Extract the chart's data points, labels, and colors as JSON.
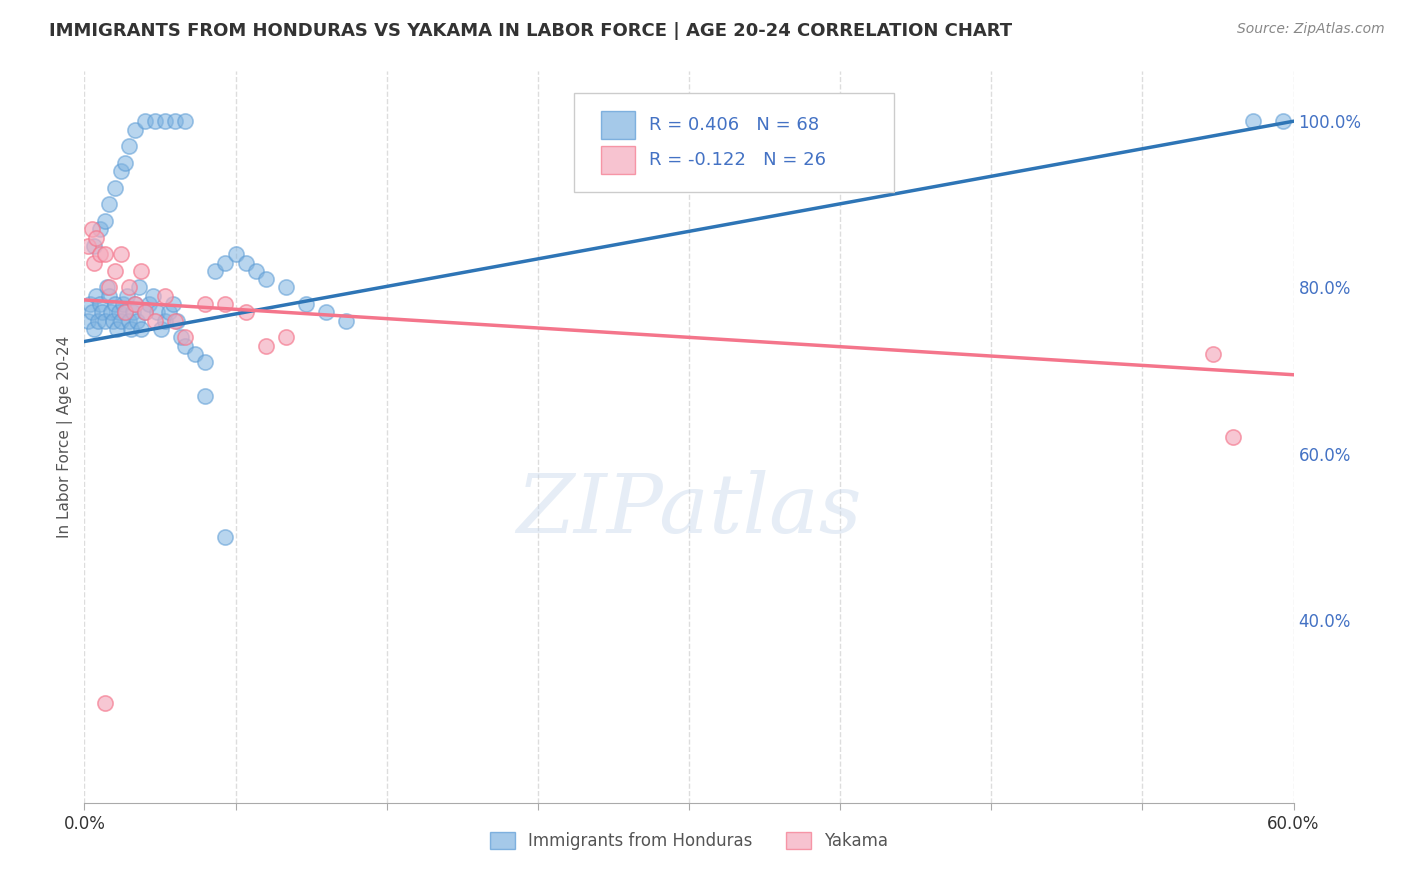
{
  "title": "IMMIGRANTS FROM HONDURAS VS YAKAMA IN LABOR FORCE | AGE 20-24 CORRELATION CHART",
  "source": "Source: ZipAtlas.com",
  "ylabel": "In Labor Force | Age 20-24",
  "watermark": "ZIPatlas",
  "xlim": [
    0.0,
    0.6
  ],
  "ylim": [
    0.18,
    1.06
  ],
  "xtick_positions": [
    0.0,
    0.075,
    0.15,
    0.225,
    0.3,
    0.375,
    0.45,
    0.525,
    0.6
  ],
  "xtick_labels_show": {
    "0.0": "0.0%",
    "0.60": "60.0%"
  },
  "ytick_grid_positions": [
    0.4,
    0.6,
    0.8,
    1.0
  ],
  "ytick_labels_right": [
    "40.0%",
    "60.0%",
    "80.0%",
    "100.0%"
  ],
  "blue_color": "#7FB3E0",
  "pink_color": "#F4AABC",
  "blue_edge_color": "#5B9BD5",
  "pink_edge_color": "#F4758B",
  "blue_line_color": "#2E75B6",
  "pink_line_color": "#F4758B",
  "R_blue": 0.406,
  "N_blue": 68,
  "R_pink": -0.122,
  "N_pink": 26,
  "legend_blue": "Immigrants from Honduras",
  "legend_pink": "Yakama",
  "blue_scatter_x": [
    0.002,
    0.003,
    0.004,
    0.005,
    0.006,
    0.007,
    0.008,
    0.009,
    0.01,
    0.011,
    0.012,
    0.013,
    0.014,
    0.015,
    0.016,
    0.017,
    0.018,
    0.019,
    0.02,
    0.021,
    0.022,
    0.023,
    0.024,
    0.025,
    0.026,
    0.027,
    0.028,
    0.03,
    0.032,
    0.034,
    0.036,
    0.038,
    0.04,
    0.042,
    0.044,
    0.046,
    0.048,
    0.05,
    0.055,
    0.06,
    0.065,
    0.07,
    0.075,
    0.08,
    0.085,
    0.09,
    0.1,
    0.11,
    0.12,
    0.13,
    0.005,
    0.008,
    0.01,
    0.012,
    0.015,
    0.018,
    0.02,
    0.022,
    0.025,
    0.03,
    0.035,
    0.04,
    0.045,
    0.05,
    0.06,
    0.07,
    0.58,
    0.595
  ],
  "blue_scatter_y": [
    0.76,
    0.78,
    0.77,
    0.75,
    0.79,
    0.76,
    0.78,
    0.77,
    0.76,
    0.8,
    0.79,
    0.77,
    0.76,
    0.78,
    0.75,
    0.77,
    0.76,
    0.78,
    0.77,
    0.79,
    0.76,
    0.75,
    0.77,
    0.78,
    0.76,
    0.8,
    0.75,
    0.77,
    0.78,
    0.79,
    0.77,
    0.75,
    0.76,
    0.77,
    0.78,
    0.76,
    0.74,
    0.73,
    0.72,
    0.71,
    0.82,
    0.83,
    0.84,
    0.83,
    0.82,
    0.81,
    0.8,
    0.78,
    0.77,
    0.76,
    0.85,
    0.87,
    0.88,
    0.9,
    0.92,
    0.94,
    0.95,
    0.97,
    0.99,
    1.0,
    1.0,
    1.0,
    1.0,
    1.0,
    0.67,
    0.5,
    1.0,
    1.0
  ],
  "pink_scatter_x": [
    0.002,
    0.004,
    0.005,
    0.006,
    0.008,
    0.01,
    0.012,
    0.015,
    0.018,
    0.02,
    0.022,
    0.025,
    0.028,
    0.03,
    0.035,
    0.04,
    0.045,
    0.05,
    0.06,
    0.07,
    0.08,
    0.09,
    0.1,
    0.56,
    0.57,
    0.01
  ],
  "pink_scatter_y": [
    0.85,
    0.87,
    0.83,
    0.86,
    0.84,
    0.84,
    0.8,
    0.82,
    0.84,
    0.77,
    0.8,
    0.78,
    0.82,
    0.77,
    0.76,
    0.79,
    0.76,
    0.74,
    0.78,
    0.78,
    0.77,
    0.73,
    0.74,
    0.72,
    0.62,
    0.3
  ],
  "blue_trend_x": [
    0.0,
    0.6
  ],
  "blue_trend_y": [
    0.735,
    1.0
  ],
  "pink_trend_x": [
    0.0,
    0.6
  ],
  "pink_trend_y": [
    0.785,
    0.695
  ],
  "background_color": "#FFFFFF",
  "grid_color": "#DDDDDD",
  "title_color": "#333333",
  "axis_label_color": "#555555",
  "right_tick_color": "#4472C4"
}
